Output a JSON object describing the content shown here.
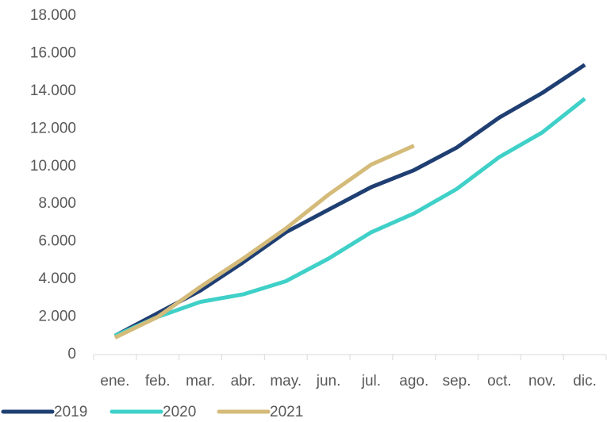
{
  "chart_data": {
    "type": "line",
    "categories": [
      "ene.",
      "feb.",
      "mar.",
      "abr.",
      "may.",
      "jun.",
      "jul.",
      "ago.",
      "sep.",
      "oct.",
      "nov.",
      "dic."
    ],
    "series": [
      {
        "name": "2019",
        "color": "#1f3f73",
        "values": [
          1000,
          2200,
          3400,
          4900,
          6500,
          7700,
          8900,
          9800,
          11000,
          12600,
          13900,
          15400
        ]
      },
      {
        "name": "2020",
        "color": "#3fd0c8",
        "values": [
          1000,
          2000,
          2800,
          3200,
          3900,
          5100,
          6500,
          7500,
          8800,
          10500,
          11800,
          13600
        ]
      },
      {
        "name": "2021",
        "color": "#d4bb7a",
        "values": [
          900,
          2000,
          3600,
          5100,
          6700,
          8500,
          10100,
          11100,
          null,
          null,
          null,
          null
        ]
      }
    ],
    "ylim": [
      0,
      18000
    ],
    "yticks": [
      0,
      {
        "value": 2000,
        "label": "2.000"
      },
      {
        "value": 4000,
        "label": "4.000"
      },
      {
        "value": 6000,
        "label": "6.000"
      },
      {
        "value": 8000,
        "label": "8.000"
      },
      {
        "value": 10000,
        "label": "10.000"
      },
      {
        "value": 12000,
        "label": "12.000"
      },
      {
        "value": 14000,
        "label": "14.000"
      },
      {
        "value": 16000,
        "label": "16.000"
      },
      {
        "value": 18000,
        "label": "18.000"
      }
    ],
    "grid": false,
    "legend": "bottom"
  }
}
